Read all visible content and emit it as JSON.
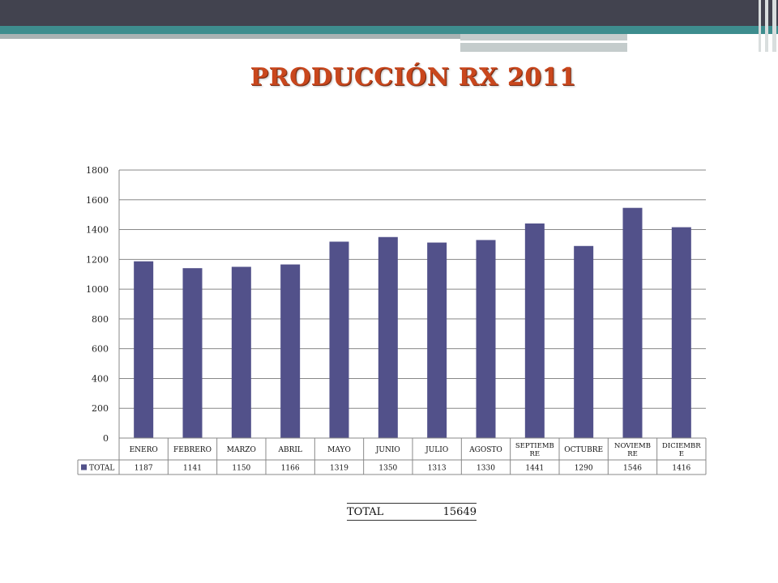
{
  "slide": {
    "title": "PRODUCCIÓN RX 2011"
  },
  "colors": {
    "bar": "#52518a",
    "title": "#c9471d",
    "grid": "#888888"
  },
  "chart_data": {
    "type": "bar",
    "categories": [
      "ENERO",
      "FEBRERO",
      "MARZO",
      "ABRIL",
      "MAYO",
      "JUNIO",
      "JULIO",
      "AGOSTO",
      "SEPTIEMB RE",
      "OCTUBRE",
      "NOVIEMB RE",
      "DICIEMBR E"
    ],
    "category_lines": [
      [
        "ENERO"
      ],
      [
        "FEBRERO"
      ],
      [
        "MARZO"
      ],
      [
        "ABRIL"
      ],
      [
        "MAYO"
      ],
      [
        "JUNIO"
      ],
      [
        "JULIO"
      ],
      [
        "AGOSTO"
      ],
      [
        "SEPTIEMB",
        "RE"
      ],
      [
        "OCTUBRE"
      ],
      [
        "NOVIEMB",
        "RE"
      ],
      [
        "DICIEMBR",
        "E"
      ]
    ],
    "series": [
      {
        "name": "TOTAL",
        "values": [
          1187,
          1141,
          1150,
          1166,
          1319,
          1350,
          1313,
          1330,
          1441,
          1290,
          1546,
          1416
        ]
      }
    ],
    "ylim": [
      0,
      1800
    ],
    "yticks": [
      0,
      200,
      400,
      600,
      800,
      1000,
      1200,
      1400,
      1600,
      1800
    ],
    "grid": true,
    "data_table": true
  },
  "summary": {
    "label": "TOTAL",
    "value": "15649"
  }
}
